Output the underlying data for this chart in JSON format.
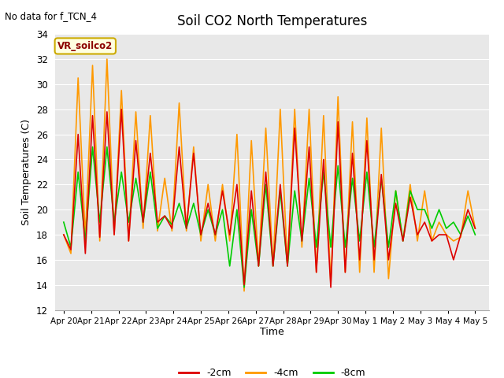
{
  "title": "Soil CO2 North Temperatures",
  "subtitle": "No data for f_TCN_4",
  "ylabel": "Soil Temperatures (C)",
  "xlabel": "Time",
  "ylim": [
    12,
    34
  ],
  "yticks": [
    12,
    14,
    16,
    18,
    20,
    22,
    24,
    26,
    28,
    30,
    32,
    34
  ],
  "fig_bg": "#ffffff",
  "plot_bg": "#e8e8e8",
  "legend_label": "VR_soilco2",
  "legend_bg": "#ffffe0",
  "legend_border": "#ccaa00",
  "xtick_labels": [
    "Apr 20",
    "Apr 21",
    "Apr 22",
    "Apr 23",
    "Apr 24",
    "Apr 25",
    "Apr 26",
    "Apr 27",
    "Apr 28",
    "Apr 29",
    "Apr 30",
    "May 1",
    "May 2",
    "May 3",
    "May 4",
    "May 5"
  ],
  "line_neg2cm_color": "#dd0000",
  "line_neg4cm_color": "#ff9900",
  "line_neg8cm_color": "#00cc00",
  "line_width": 1.2,
  "t_neg2cm": [
    18.0,
    16.8,
    26.0,
    16.5,
    27.5,
    17.8,
    27.8,
    18.0,
    28.0,
    17.5,
    25.5,
    19.0,
    24.5,
    19.0,
    19.5,
    18.5,
    25.0,
    18.5,
    24.5,
    18.0,
    20.5,
    18.0,
    21.5,
    18.0,
    22.0,
    14.0,
    21.5,
    15.5,
    23.0,
    15.5,
    22.0,
    15.5,
    26.5,
    17.5,
    25.0,
    15.0,
    24.0,
    13.8,
    27.0,
    15.0,
    24.5,
    16.0,
    25.5,
    16.0,
    22.8,
    16.0,
    20.5,
    17.5,
    21.0,
    18.0,
    19.0,
    17.5,
    18.0,
    18.0,
    16.0,
    18.0,
    20.0,
    18.5
  ],
  "t_neg4cm": [
    18.0,
    16.5,
    30.5,
    17.8,
    31.5,
    17.5,
    32.0,
    18.0,
    29.5,
    17.5,
    27.8,
    18.5,
    27.5,
    18.3,
    22.5,
    18.3,
    28.5,
    18.3,
    25.0,
    17.5,
    22.0,
    17.5,
    22.0,
    17.5,
    26.0,
    13.5,
    25.5,
    15.5,
    26.5,
    15.5,
    28.0,
    15.5,
    28.0,
    17.0,
    28.0,
    15.0,
    27.5,
    14.0,
    29.0,
    15.0,
    27.0,
    15.0,
    27.3,
    15.0,
    26.5,
    14.5,
    21.5,
    17.5,
    22.0,
    17.5,
    21.5,
    17.5,
    19.0,
    18.0,
    17.5,
    17.8,
    21.5,
    18.5
  ],
  "t_neg8cm": [
    19.0,
    17.0,
    23.0,
    17.5,
    25.0,
    19.0,
    25.0,
    19.0,
    23.0,
    19.0,
    22.5,
    19.0,
    23.0,
    18.5,
    19.5,
    18.8,
    20.5,
    18.5,
    20.5,
    18.0,
    20.0,
    18.0,
    20.0,
    15.5,
    20.0,
    13.8,
    20.0,
    15.5,
    22.0,
    15.5,
    21.5,
    15.5,
    21.5,
    17.5,
    22.5,
    17.0,
    23.0,
    17.0,
    23.5,
    17.0,
    22.5,
    17.5,
    23.0,
    17.0,
    22.5,
    17.0,
    21.5,
    17.5,
    21.5,
    20.0,
    20.0,
    18.5,
    20.0,
    18.5,
    19.0,
    18.0,
    19.5,
    18.0
  ]
}
